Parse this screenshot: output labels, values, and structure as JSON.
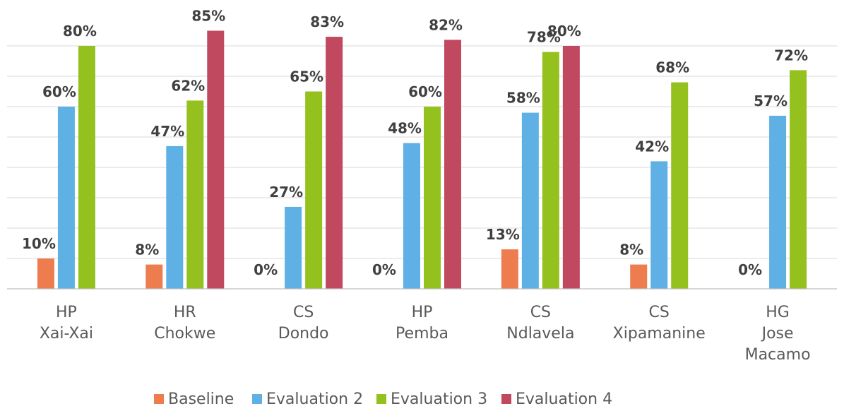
{
  "chart_data": {
    "type": "bar",
    "categories": [
      [
        "HP",
        "Xai-Xai"
      ],
      [
        "HR",
        "Chokwe"
      ],
      [
        "CS",
        "Dondo"
      ],
      [
        "HP",
        "Pemba"
      ],
      [
        "CS",
        "Ndlavela"
      ],
      [
        "CS",
        "Xipamanine"
      ],
      [
        "HG",
        "Jose",
        "Macamo"
      ]
    ],
    "series": [
      {
        "name": "Baseline",
        "color": "#ed7d4f",
        "values": [
          10,
          8,
          0,
          0,
          13,
          8,
          0
        ],
        "labels": [
          "10%",
          "8%",
          "0%",
          "0%",
          "13%",
          "8%",
          "0%"
        ]
      },
      {
        "name": "Evaluation 2",
        "color": "#5fb0e5",
        "values": [
          60,
          47,
          27,
          48,
          58,
          42,
          57
        ],
        "labels": [
          "60%",
          "47%",
          "27%",
          "48%",
          "58%",
          "42%",
          "57%"
        ]
      },
      {
        "name": "Evaluation 3",
        "color": "#95c11f",
        "values": [
          80,
          62,
          65,
          60,
          78,
          68,
          72
        ],
        "labels": [
          "80%",
          "62%",
          "65%",
          "60%",
          "78%",
          "68%",
          "72%"
        ]
      },
      {
        "name": "Evaluation 4",
        "color": "#c0485f",
        "values": [
          null,
          85,
          83,
          82,
          80,
          null,
          null
        ],
        "labels": [
          "",
          "85%",
          "83%",
          "82%",
          "80%",
          "",
          ""
        ]
      }
    ],
    "ylim": [
      0,
      95
    ],
    "grid": true,
    "legend": "bottom",
    "title": "",
    "xlabel": "",
    "ylabel": ""
  }
}
